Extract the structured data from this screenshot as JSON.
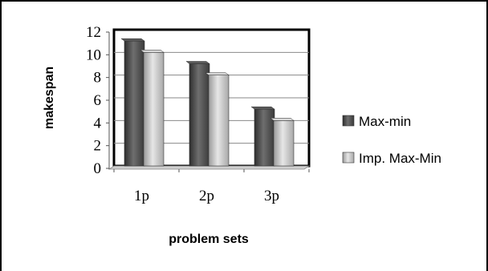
{
  "chart_data": {
    "type": "bar",
    "title": "",
    "xlabel": "problem sets",
    "ylabel": "makespan",
    "categories": [
      "1p",
      "2p",
      "3p"
    ],
    "series": [
      {
        "name": "Max-min",
        "values": [
          11,
          9,
          5
        ],
        "color": "#4a4a4a"
      },
      {
        "name": "Imp. Max-Min",
        "values": [
          10,
          8,
          4
        ],
        "color": "#bcbcbc"
      }
    ],
    "yticks": [
      "0",
      "2",
      "4",
      "6",
      "8",
      "10",
      "12"
    ],
    "ylim": [
      0,
      12
    ],
    "grid": true,
    "legend_position": "right",
    "style": "3d-bars"
  }
}
